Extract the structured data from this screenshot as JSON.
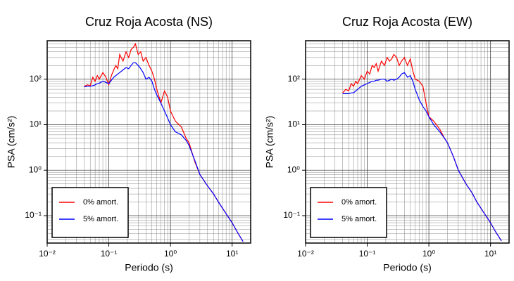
{
  "chart_data": [
    {
      "type": "line",
      "title": "Cruz Roja Acosta (NS)",
      "x_label": "Periodo (s)",
      "y_label": "PSA (cm/s²)",
      "log_x": true,
      "log_y": true,
      "grid": true,
      "legend": "lower left",
      "xlim": [
        0.01,
        20
      ],
      "ylim": [
        0.025,
        700
      ],
      "xticks": [
        {
          "value": 0.01,
          "label": "10⁻²"
        },
        {
          "value": 0.1,
          "label": "10⁻¹"
        },
        {
          "value": 1,
          "label": "10⁰"
        },
        {
          "value": 10,
          "label": "10¹"
        }
      ],
      "yticks": [
        {
          "value": 0.1,
          "label": "10⁻¹"
        },
        {
          "value": 1,
          "label": "10⁰"
        },
        {
          "value": 10,
          "label": "10¹"
        },
        {
          "value": 100,
          "label": "10²"
        }
      ],
      "x": [
        0.04,
        0.045,
        0.05,
        0.055,
        0.06,
        0.065,
        0.07,
        0.08,
        0.09,
        0.1,
        0.11,
        0.12,
        0.13,
        0.14,
        0.15,
        0.17,
        0.19,
        0.21,
        0.23,
        0.25,
        0.27,
        0.3,
        0.33,
        0.36,
        0.4,
        0.45,
        0.5,
        0.55,
        0.6,
        0.7,
        0.8,
        0.9,
        1.0,
        1.2,
        1.5,
        1.8,
        2.0,
        2.5,
        3,
        4,
        5,
        6,
        8,
        10,
        12,
        15
      ],
      "series": [
        {
          "name": "0% amort.",
          "color": "#ff0000",
          "values": [
            70,
            75,
            72,
            110,
            90,
            120,
            100,
            140,
            110,
            75,
            120,
            160,
            200,
            170,
            350,
            250,
            400,
            300,
            450,
            500,
            600,
            350,
            400,
            250,
            300,
            200,
            150,
            100,
            60,
            30,
            55,
            40,
            20,
            12,
            9,
            5,
            4,
            1.5,
            0.8,
            0.45,
            0.3,
            0.2,
            0.11,
            0.07,
            0.045,
            0.027
          ]
        },
        {
          "name": "5% amort.",
          "color": "#0000ff",
          "values": [
            68,
            70,
            70,
            72,
            75,
            80,
            82,
            90,
            85,
            80,
            95,
            110,
            120,
            130,
            140,
            160,
            180,
            170,
            200,
            230,
            230,
            200,
            170,
            140,
            100,
            110,
            90,
            60,
            45,
            30,
            20,
            14,
            10,
            7,
            6,
            4.5,
            3.5,
            1.6,
            0.8,
            0.45,
            0.3,
            0.2,
            0.11,
            0.07,
            0.045,
            0.027
          ]
        }
      ]
    },
    {
      "type": "line",
      "title": "Cruz Roja Acosta (EW)",
      "x_label": "Periodo (s)",
      "y_label": "PSA (cm/s²)",
      "log_x": true,
      "log_y": true,
      "grid": true,
      "legend": "lower left",
      "xlim": [
        0.01,
        20
      ],
      "ylim": [
        0.025,
        700
      ],
      "xticks": [
        {
          "value": 0.01,
          "label": "10⁻²"
        },
        {
          "value": 0.1,
          "label": "10⁻¹"
        },
        {
          "value": 1,
          "label": "10⁰"
        },
        {
          "value": 10,
          "label": "10¹"
        }
      ],
      "yticks": [
        {
          "value": 0.1,
          "label": "10⁻¹"
        },
        {
          "value": 1,
          "label": "10⁰"
        },
        {
          "value": 10,
          "label": "10¹"
        },
        {
          "value": 100,
          "label": "10²"
        }
      ],
      "x": [
        0.04,
        0.045,
        0.05,
        0.055,
        0.06,
        0.065,
        0.07,
        0.08,
        0.09,
        0.1,
        0.11,
        0.12,
        0.13,
        0.14,
        0.15,
        0.17,
        0.19,
        0.21,
        0.23,
        0.25,
        0.27,
        0.3,
        0.33,
        0.36,
        0.4,
        0.45,
        0.5,
        0.55,
        0.6,
        0.7,
        0.8,
        0.9,
        1.0,
        1.2,
        1.5,
        1.8,
        2.0,
        2.5,
        3,
        4,
        5,
        6,
        8,
        10,
        12,
        15
      ],
      "series": [
        {
          "name": "0% amort.",
          "color": "#ff0000",
          "values": [
            50,
            60,
            55,
            80,
            70,
            90,
            80,
            120,
            100,
            150,
            130,
            200,
            180,
            220,
            150,
            250,
            200,
            300,
            250,
            280,
            350,
            300,
            200,
            250,
            300,
            200,
            280,
            150,
            100,
            90,
            70,
            30,
            15,
            12,
            8,
            5,
            4,
            2,
            1,
            0.5,
            0.32,
            0.2,
            0.11,
            0.07,
            0.045,
            0.028
          ]
        },
        {
          "name": "5% amort.",
          "color": "#0000ff",
          "values": [
            48,
            48,
            48,
            50,
            50,
            55,
            60,
            70,
            75,
            80,
            85,
            90,
            90,
            95,
            95,
            100,
            100,
            90,
            95,
            100,
            95,
            100,
            110,
            130,
            140,
            110,
            120,
            90,
            60,
            35,
            25,
            20,
            15,
            10,
            7,
            5,
            4,
            2,
            1,
            0.5,
            0.32,
            0.2,
            0.11,
            0.07,
            0.045,
            0.028
          ]
        }
      ]
    }
  ]
}
